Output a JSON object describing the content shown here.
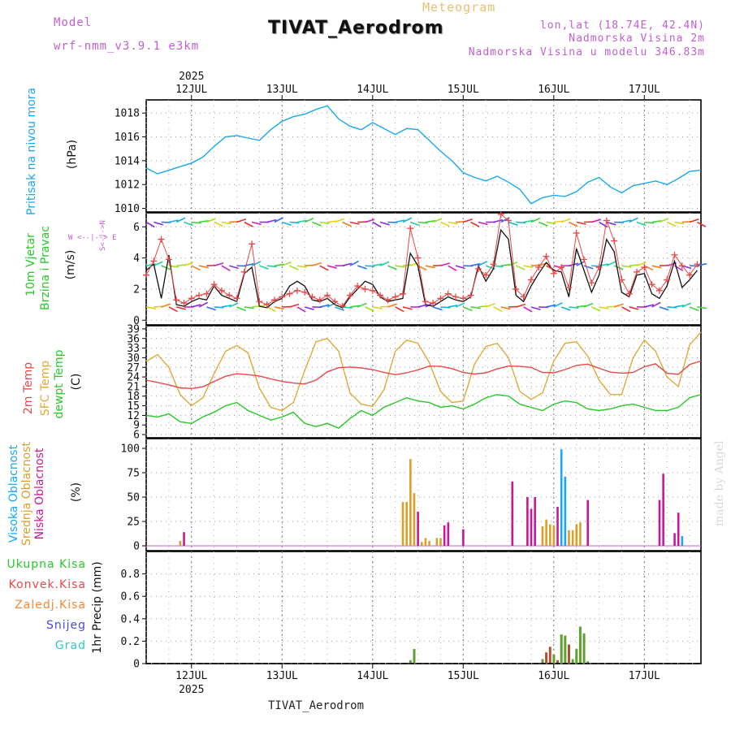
{
  "header": {
    "model_label": "Model",
    "model_name": "wrf-nmm_v3.9.1 e3km",
    "title": "TIVAT_Aerodrom",
    "meteogram": "Meteogram",
    "lonlat": "lon,lat (18.74E, 42.4N)",
    "height": "Nadmorska Visina 2m",
    "model_height": "Nadmorska Visina u modelu 346.83m"
  },
  "footer": {
    "station": "TIVAT_Aerodrom",
    "credit": "made by Angel"
  },
  "colors": {
    "pressure": "#18a8f0",
    "temp2m": "#e84848",
    "sfc": "#e0a838",
    "dewpt": "#28c828",
    "high": "#18a8f0",
    "mid": "#d8a028",
    "low": "#c81898",
    "total": "#28c828",
    "conv": "#e84848",
    "frozen": "#f08838",
    "snow": "#4848e8",
    "grad": "#30c8c8",
    "model": "#c060d0"
  },
  "chart_data": [
    {
      "type": "line",
      "id": "pressure",
      "ylabel_main": "Pritisak na nivou mora",
      "ylabel_unit": "(hPa)",
      "ylim": [
        1009.7,
        1019.1
      ],
      "yticks": [
        "1010",
        "1012",
        "1014",
        "1016",
        "1018"
      ],
      "ytick_values": [
        1010,
        1012,
        1014,
        1016,
        1018
      ],
      "x": [
        0,
        3,
        6,
        9,
        12,
        15,
        18,
        21,
        24,
        27,
        30,
        33,
        36,
        39,
        42,
        45,
        48,
        51,
        54,
        57,
        60,
        63,
        66,
        69,
        72,
        75,
        78,
        81,
        84,
        87,
        90,
        93,
        96,
        99,
        102,
        105,
        108,
        111,
        114,
        117,
        120,
        123,
        126,
        129,
        132,
        135,
        138,
        141,
        144,
        147
      ],
      "values": [
        1013.4,
        1012.9,
        1013.2,
        1013.5,
        1013.8,
        1014.3,
        1015.2,
        1016.0,
        1016.1,
        1015.9,
        1015.7,
        1016.6,
        1017.3,
        1017.7,
        1017.9,
        1018.3,
        1018.6,
        1017.5,
        1016.9,
        1016.6,
        1017.2,
        1016.7,
        1016.2,
        1016.7,
        1016.6,
        1015.7,
        1014.8,
        1014.0,
        1013.0,
        1012.6,
        1012.3,
        1012.7,
        1012.2,
        1011.6,
        1010.4,
        1010.9,
        1011.1,
        1011.0,
        1011.4,
        1012.2,
        1012.6,
        1011.8,
        1011.3,
        1011.9,
        1012.1,
        1012.3,
        1012.0,
        1012.5,
        1013.1,
        1013.2
      ]
    },
    {
      "type": "line",
      "id": "wind",
      "ylabel_main": "10m Vjetar",
      "ylabel_sub": "Brzina i Pravac",
      "ylabel_unit": "(m/s)",
      "compass": "W <--|--> E",
      "compass2": "S<-|->N",
      "ylim": [
        -0.3,
        6.9
      ],
      "yticks": [
        "0",
        "2",
        "4",
        "6"
      ],
      "ytick_values": [
        0,
        2,
        4,
        6
      ],
      "x": [
        0,
        2,
        4,
        6,
        8,
        10,
        12,
        14,
        16,
        18,
        20,
        22,
        24,
        26,
        28,
        30,
        32,
        34,
        36,
        38,
        40,
        42,
        44,
        46,
        48,
        50,
        52,
        54,
        56,
        58,
        60,
        62,
        64,
        66,
        68,
        70,
        72,
        74,
        76,
        78,
        80,
        82,
        84,
        86,
        88,
        90,
        92,
        94,
        96,
        98,
        100,
        102,
        104,
        106,
        108,
        110,
        112,
        114,
        116,
        118,
        120,
        122,
        124,
        126,
        128,
        130,
        132,
        134,
        136,
        138,
        140,
        142,
        144,
        146
      ],
      "values": [
        3.2,
        3.6,
        1.4,
        4.2,
        1.0,
        0.9,
        1.2,
        1.4,
        1.3,
        2.2,
        1.6,
        1.4,
        1.2,
        3.0,
        3.4,
        0.9,
        0.8,
        1.2,
        1.4,
        2.2,
        2.5,
        2.2,
        1.3,
        1.2,
        1.4,
        1.0,
        0.8,
        1.5,
        2.0,
        2.5,
        2.3,
        1.5,
        1.2,
        1.3,
        1.4,
        4.3,
        3.5,
        1.0,
        0.9,
        1.2,
        1.5,
        1.3,
        1.2,
        1.5,
        3.5,
        2.5,
        3.3,
        5.8,
        5.2,
        1.6,
        1.2,
        2.2,
        3.0,
        3.7,
        3.2,
        3.1,
        1.5,
        4.6,
        3.2,
        1.8,
        2.9,
        5.2,
        4.4,
        1.8,
        1.5,
        2.9,
        3.0,
        1.7,
        1.4,
        2.2,
        3.8,
        2.1,
        2.6,
        3.2
      ],
      "gust": [
        2.9,
        3.8,
        5.2,
        3.9,
        1.3,
        1.1,
        1.4,
        1.6,
        1.7,
        2.3,
        1.9,
        1.6,
        1.4,
        3.1,
        4.9,
        1.2,
        1.0,
        1.3,
        1.5,
        1.7,
        1.9,
        1.8,
        1.5,
        1.3,
        1.6,
        1.2,
        0.9,
        1.6,
        2.2,
        2.0,
        1.9,
        1.6,
        1.3,
        1.5,
        1.7,
        5.9,
        4.0,
        1.2,
        1.1,
        1.4,
        1.7,
        1.5,
        1.4,
        1.6,
        3.3,
        2.9,
        3.6,
        6.8,
        6.4,
        2.0,
        1.5,
        2.6,
        3.4,
        4.1,
        3.0,
        3.4,
        2.1,
        5.6,
        3.9,
        2.4,
        3.4,
        6.4,
        5.1,
        2.6,
        1.7,
        3.1,
        3.4,
        2.3,
        1.9,
        2.6,
        4.2,
        3.5,
        2.9,
        3.6
      ]
    },
    {
      "type": "line",
      "id": "temperature",
      "ylabel_a": "2m Temp",
      "ylabel_b": "SFC Temp",
      "ylabel_c": "dewpt Temp",
      "ylabel_unit": "(C)",
      "ylim": [
        5,
        40
      ],
      "yticks": [
        "6",
        "9",
        "12",
        "15",
        "18",
        "21",
        "24",
        "27",
        "30",
        "33",
        "36",
        "39"
      ],
      "ytick_values": [
        6,
        9,
        12,
        15,
        18,
        21,
        24,
        27,
        30,
        33,
        36,
        39
      ],
      "x": [
        0,
        3,
        6,
        9,
        12,
        15,
        18,
        21,
        24,
        27,
        30,
        33,
        36,
        39,
        42,
        45,
        48,
        51,
        54,
        57,
        60,
        63,
        66,
        69,
        72,
        75,
        78,
        81,
        84,
        87,
        90,
        93,
        96,
        99,
        102,
        105,
        108,
        111,
        114,
        117,
        120,
        123,
        126,
        129,
        132,
        135,
        138,
        141,
        144,
        147
      ],
      "temp2m": [
        23.0,
        22.3,
        21.5,
        20.6,
        20.4,
        20.9,
        22.6,
        24.2,
        25.0,
        24.7,
        24.3,
        23.4,
        22.6,
        22.1,
        21.8,
        23.0,
        25.6,
        26.9,
        27.1,
        26.8,
        26.3,
        25.4,
        24.7,
        25.3,
        26.2,
        27.4,
        27.3,
        26.6,
        25.4,
        24.9,
        25.3,
        26.5,
        27.4,
        27.3,
        27.0,
        25.4,
        25.3,
        26.3,
        27.6,
        28.0,
        26.7,
        25.5,
        25.2,
        25.4,
        27.2,
        28.1,
        25.2,
        24.8,
        27.9,
        29.0
      ],
      "sfc": [
        28.8,
        31.0,
        27.0,
        18.5,
        15.0,
        17.5,
        25.0,
        32.0,
        33.8,
        31.5,
        20.5,
        14.5,
        13.5,
        16.0,
        26.0,
        35.0,
        36.0,
        32.0,
        19.0,
        15.5,
        14.8,
        20.0,
        32.0,
        35.5,
        34.5,
        28.5,
        19.5,
        16.0,
        16.5,
        28.0,
        33.5,
        34.5,
        30.0,
        19.5,
        17.0,
        19.0,
        29.0,
        34.5,
        35.0,
        30.5,
        23.0,
        18.5,
        18.5,
        30.0,
        35.5,
        32.0,
        24.0,
        21.0,
        34.0,
        38.0
      ],
      "dewpt": [
        12.0,
        11.5,
        12.5,
        10.0,
        9.5,
        11.5,
        13.0,
        15.0,
        16.0,
        13.5,
        12.0,
        10.5,
        11.5,
        13.0,
        9.5,
        8.5,
        9.5,
        8.0,
        11.0,
        13.5,
        12.0,
        14.5,
        16.0,
        17.5,
        16.5,
        16.0,
        14.5,
        15.0,
        14.0,
        15.5,
        17.5,
        18.5,
        18.0,
        15.5,
        14.5,
        13.5,
        15.5,
        16.5,
        16.0,
        14.0,
        13.5,
        14.0,
        15.0,
        15.5,
        14.5,
        13.5,
        13.5,
        14.5,
        17.5,
        18.5
      ]
    },
    {
      "type": "bar",
      "id": "clouds",
      "ylabel_a": "Visoka Oblacnost",
      "ylabel_b": "Srednja Oblacnost",
      "ylabel_c": "Niska Oblacnost",
      "ylabel_unit": "(%)",
      "ylim": [
        -5,
        110
      ],
      "yticks": [
        "0",
        "25",
        "50",
        "75",
        "100"
      ],
      "ytick_values": [
        0,
        25,
        50,
        75,
        100
      ],
      "bars": [
        {
          "t": 9,
          "layer": "mid",
          "v": 5
        },
        {
          "t": 10,
          "layer": "low",
          "v": 14
        },
        {
          "t": 68,
          "layer": "mid",
          "v": 45
        },
        {
          "t": 69,
          "layer": "mid",
          "v": 45
        },
        {
          "t": 70,
          "layer": "mid",
          "v": 89
        },
        {
          "t": 71,
          "layer": "mid",
          "v": 54
        },
        {
          "t": 72,
          "layer": "low",
          "v": 35
        },
        {
          "t": 73,
          "layer": "mid",
          "v": 4
        },
        {
          "t": 74,
          "layer": "mid",
          "v": 8
        },
        {
          "t": 75,
          "layer": "mid",
          "v": 5
        },
        {
          "t": 77,
          "layer": "mid",
          "v": 8
        },
        {
          "t": 78,
          "layer": "mid",
          "v": 8
        },
        {
          "t": 79,
          "layer": "low",
          "v": 21
        },
        {
          "t": 80,
          "layer": "low",
          "v": 24
        },
        {
          "t": 84,
          "layer": "low",
          "v": 17
        },
        {
          "t": 97,
          "layer": "low",
          "v": 66
        },
        {
          "t": 101,
          "layer": "low",
          "v": 50
        },
        {
          "t": 102,
          "layer": "low",
          "v": 38
        },
        {
          "t": 103,
          "layer": "low",
          "v": 50
        },
        {
          "t": 105,
          "layer": "mid",
          "v": 20
        },
        {
          "t": 106,
          "layer": "mid",
          "v": 27
        },
        {
          "t": 107,
          "layer": "mid",
          "v": 22
        },
        {
          "t": 108,
          "layer": "mid",
          "v": 21
        },
        {
          "t": 109,
          "layer": "low",
          "v": 40
        },
        {
          "t": 110,
          "layer": "high",
          "v": 99
        },
        {
          "t": 111,
          "layer": "high",
          "v": 71
        },
        {
          "t": 112,
          "layer": "mid",
          "v": 16
        },
        {
          "t": 113,
          "layer": "mid",
          "v": 16
        },
        {
          "t": 114,
          "layer": "mid",
          "v": 22
        },
        {
          "t": 115,
          "layer": "mid",
          "v": 24
        },
        {
          "t": 117,
          "layer": "low",
          "v": 47
        },
        {
          "t": 136,
          "layer": "low",
          "v": 47
        },
        {
          "t": 137,
          "layer": "low",
          "v": 74
        },
        {
          "t": 140,
          "layer": "low",
          "v": 13
        },
        {
          "t": 141,
          "layer": "low",
          "v": 34
        },
        {
          "t": 142,
          "layer": "high",
          "v": 10
        }
      ]
    },
    {
      "type": "bar",
      "id": "precip",
      "ylabel_unit": "1hr Precip (mm)",
      "legend": [
        "Ukupna Kisa",
        "Konvek.Kisa",
        "Zaledj.Kisa",
        "Snijeg",
        "Grad"
      ],
      "ylim": [
        0,
        1.0
      ],
      "yticks": [
        "0",
        "0.2",
        "0.4",
        "0.6",
        "0.8"
      ],
      "ytick_values": [
        0,
        0.2,
        0.4,
        0.6,
        0.8
      ],
      "bars": [
        {
          "t": 70,
          "type": "total",
          "v": 0.03
        },
        {
          "t": 71,
          "type": "total",
          "v": 0.13
        },
        {
          "t": 105,
          "type": "total",
          "v": 0.04
        },
        {
          "t": 106,
          "type": "conv",
          "v": 0.1
        },
        {
          "t": 107,
          "type": "conv",
          "v": 0.15
        },
        {
          "t": 108,
          "type": "total",
          "v": 0.08
        },
        {
          "t": 109,
          "type": "conv",
          "v": 0.03
        },
        {
          "t": 110,
          "type": "total",
          "v": 0.26
        },
        {
          "t": 111,
          "type": "total",
          "v": 0.25
        },
        {
          "t": 112,
          "type": "conv",
          "v": 0.17
        },
        {
          "t": 113,
          "type": "total",
          "v": 0.04
        },
        {
          "t": 114,
          "type": "total",
          "v": 0.13
        },
        {
          "t": 115,
          "type": "total",
          "v": 0.33
        },
        {
          "t": 116,
          "type": "total",
          "v": 0.27
        },
        {
          "t": 117,
          "type": "total",
          "v": 0.02
        }
      ]
    }
  ],
  "xaxis": {
    "year": "2025",
    "days": [
      "12JUL",
      "13JUL",
      "14JUL",
      "15JUL",
      "16JUL",
      "17JUL"
    ],
    "day_hours": [
      12,
      36,
      60,
      84,
      108,
      132
    ],
    "hours_total": 147
  }
}
